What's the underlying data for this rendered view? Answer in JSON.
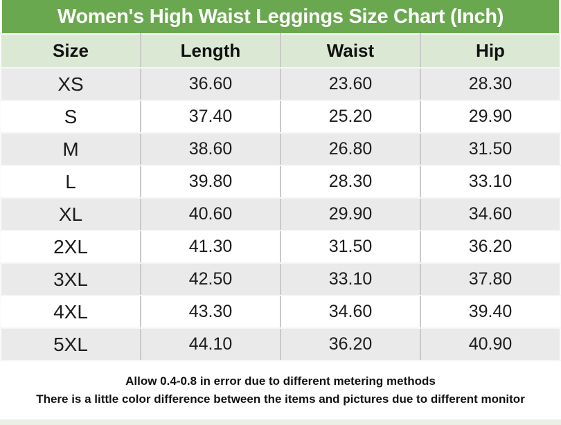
{
  "title": "Women's High Waist Leggings Size Chart (Inch)",
  "colors": {
    "title_bar_bg": "#6aa84f",
    "title_text": "#ffffff",
    "header_row_bg": "#dbe9d4",
    "row_alt_bg": "#eaeaea",
    "row_bg": "#ffffff",
    "cell_text": "#1c1c1c",
    "divider_vertical": "#c9c9c9",
    "divider_horizontal": "#f6f6f6"
  },
  "chart_data": {
    "type": "table",
    "title": "Women's High Waist Leggings Size Chart (Inch)",
    "unit": "Inch",
    "columns": [
      "Size",
      "Length",
      "Waist",
      "Hip"
    ],
    "rows": [
      [
        "XS",
        "36.60",
        "23.60",
        "28.30"
      ],
      [
        "S",
        "37.40",
        "25.20",
        "29.90"
      ],
      [
        "M",
        "38.60",
        "26.80",
        "31.50"
      ],
      [
        "L",
        "39.80",
        "28.30",
        "33.10"
      ],
      [
        "XL",
        "40.60",
        "29.90",
        "34.60"
      ],
      [
        "2XL",
        "41.30",
        "31.50",
        "36.20"
      ],
      [
        "3XL",
        "42.50",
        "33.10",
        "37.80"
      ],
      [
        "4XL",
        "43.30",
        "34.60",
        "39.40"
      ],
      [
        "5XL",
        "44.10",
        "36.20",
        "40.90"
      ]
    ]
  },
  "footer": {
    "line1": "Allow 0.4-0.8 in error due to different metering methods",
    "line2": "There is a little color difference between the items and pictures due to different monitor"
  }
}
